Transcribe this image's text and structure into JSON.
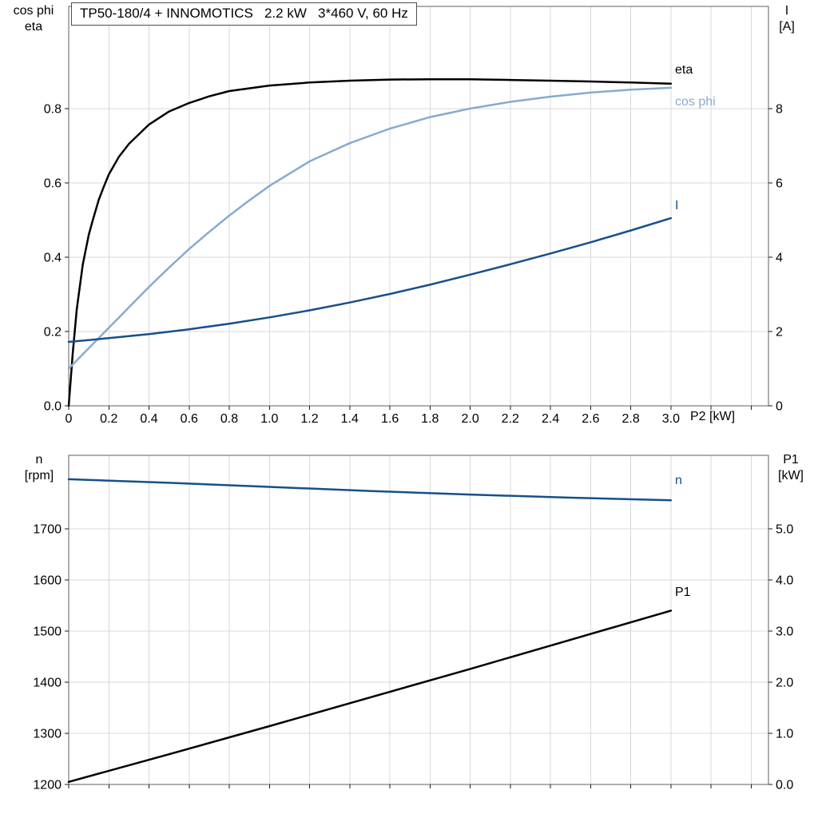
{
  "style": {
    "grid_color": "#d8d8d8",
    "border_color": "#5f5f5f",
    "tick_color": "#1a1a1a",
    "eta_color": "#000000",
    "cos_phi_color": "#86abd0",
    "current_color": "#174f8a"
  },
  "chart_data": [
    {
      "type": "line",
      "title": "TP50-180/4 + INNOMOTICS   2.2 kW   3*460 V, 60 Hz",
      "x_axis": {
        "label": "P2 [kW]",
        "range": [
          0,
          3.486
        ],
        "grid_step": 0.2,
        "tick_values": [
          0,
          0.2,
          0.4,
          0.6,
          0.8,
          1.0,
          1.2,
          1.4,
          1.6,
          1.8,
          2.0,
          2.2,
          2.4,
          2.6,
          2.8,
          3.0
        ],
        "tick_labels": [
          "0",
          "0.2",
          "0.4",
          "0.6",
          "0.8",
          "1.0",
          "1.2",
          "1.4",
          "1.6",
          "1.8",
          "2.0",
          "2.2",
          "2.4",
          "2.6",
          "2.8",
          "3.0"
        ],
        "grid": true
      },
      "y_left": {
        "label": [
          "cos phi",
          "eta"
        ],
        "range": [
          0,
          1.075
        ],
        "tick_values": [
          0,
          0.2,
          0.4,
          0.6,
          0.8
        ],
        "tick_labels": [
          "0.0",
          "0.2",
          "0.4",
          "0.6",
          "0.8"
        ],
        "grid": true
      },
      "y_right": {
        "label": [
          "I",
          "[A]"
        ],
        "range": [
          0,
          10.75
        ],
        "tick_values": [
          0,
          2,
          4,
          6,
          8
        ],
        "tick_labels": [
          "0",
          "2",
          "4",
          "6",
          "8"
        ]
      },
      "series": [
        {
          "name": "eta",
          "axis": "left",
          "color": "#000000",
          "x": [
            0,
            0.02,
            0.04,
            0.07,
            0.1,
            0.12,
            0.15,
            0.175,
            0.2,
            0.25,
            0.3,
            0.4,
            0.5,
            0.6,
            0.7,
            0.8,
            1.0,
            1.2,
            1.4,
            1.6,
            1.8,
            2.0,
            2.2,
            2.4,
            2.6,
            2.8,
            3.0
          ],
          "y": [
            0,
            0.14,
            0.26,
            0.38,
            0.46,
            0.5,
            0.555,
            0.59,
            0.623,
            0.67,
            0.705,
            0.757,
            0.792,
            0.815,
            0.833,
            0.847,
            0.862,
            0.87,
            0.875,
            0.878,
            0.879,
            0.879,
            0.877,
            0.875,
            0.873,
            0.87,
            0.867
          ]
        },
        {
          "name": "cos phi",
          "axis": "left",
          "color": "#86abd0",
          "x": [
            0,
            0.1,
            0.2,
            0.3,
            0.4,
            0.5,
            0.6,
            0.7,
            0.8,
            0.9,
            1.0,
            1.2,
            1.4,
            1.6,
            1.8,
            2.0,
            2.2,
            2.4,
            2.6,
            2.8,
            3.0
          ],
          "y": [
            0.1,
            0.155,
            0.21,
            0.265,
            0.32,
            0.372,
            0.422,
            0.468,
            0.512,
            0.553,
            0.592,
            0.658,
            0.707,
            0.746,
            0.777,
            0.8,
            0.818,
            0.832,
            0.843,
            0.851,
            0.856
          ]
        },
        {
          "name": "I",
          "axis": "right",
          "color": "#174f8a",
          "x": [
            0,
            0.2,
            0.4,
            0.6,
            0.8,
            1.0,
            1.2,
            1.4,
            1.6,
            1.8,
            2.0,
            2.2,
            2.4,
            2.6,
            2.8,
            3.0
          ],
          "y": [
            1.72,
            1.82,
            1.93,
            2.06,
            2.21,
            2.38,
            2.57,
            2.78,
            3.01,
            3.26,
            3.53,
            3.81,
            4.1,
            4.4,
            4.72,
            5.05
          ]
        }
      ]
    },
    {
      "type": "line",
      "title": "",
      "x_axis": {
        "label": "",
        "range": [
          0,
          3.486
        ],
        "grid_step": 0.2,
        "tick_values": [],
        "tick_labels": [],
        "grid": true
      },
      "y_left": {
        "label": [
          "n",
          "[rpm]"
        ],
        "range": [
          1200,
          1843.75
        ],
        "tick_values": [
          1200,
          1300,
          1400,
          1500,
          1600,
          1700
        ],
        "tick_labels": [
          "1200",
          "1300",
          "1400",
          "1500",
          "1600",
          "1700"
        ],
        "grid": true
      },
      "y_right": {
        "label": [
          "P1",
          "[kW]"
        ],
        "range": [
          0,
          6.4375
        ],
        "tick_values": [
          0,
          1,
          2,
          3,
          4,
          5
        ],
        "tick_labels": [
          "0.0",
          "1.0",
          "2.0",
          "3.0",
          "4.0",
          "5.0"
        ]
      },
      "series": [
        {
          "name": "n",
          "axis": "left",
          "color": "#174f8a",
          "x": [
            0,
            0.5,
            1.0,
            1.5,
            2.0,
            2.5,
            3.0
          ],
          "y": [
            1797,
            1790,
            1782,
            1774,
            1767,
            1761,
            1756
          ]
        },
        {
          "name": "P1",
          "axis": "right",
          "color": "#000000",
          "x": [
            0,
            0.5,
            1.0,
            1.5,
            2.0,
            2.5,
            3.0
          ],
          "y": [
            0.05,
            0.59,
            1.14,
            1.7,
            2.26,
            2.83,
            3.4
          ]
        }
      ]
    }
  ]
}
